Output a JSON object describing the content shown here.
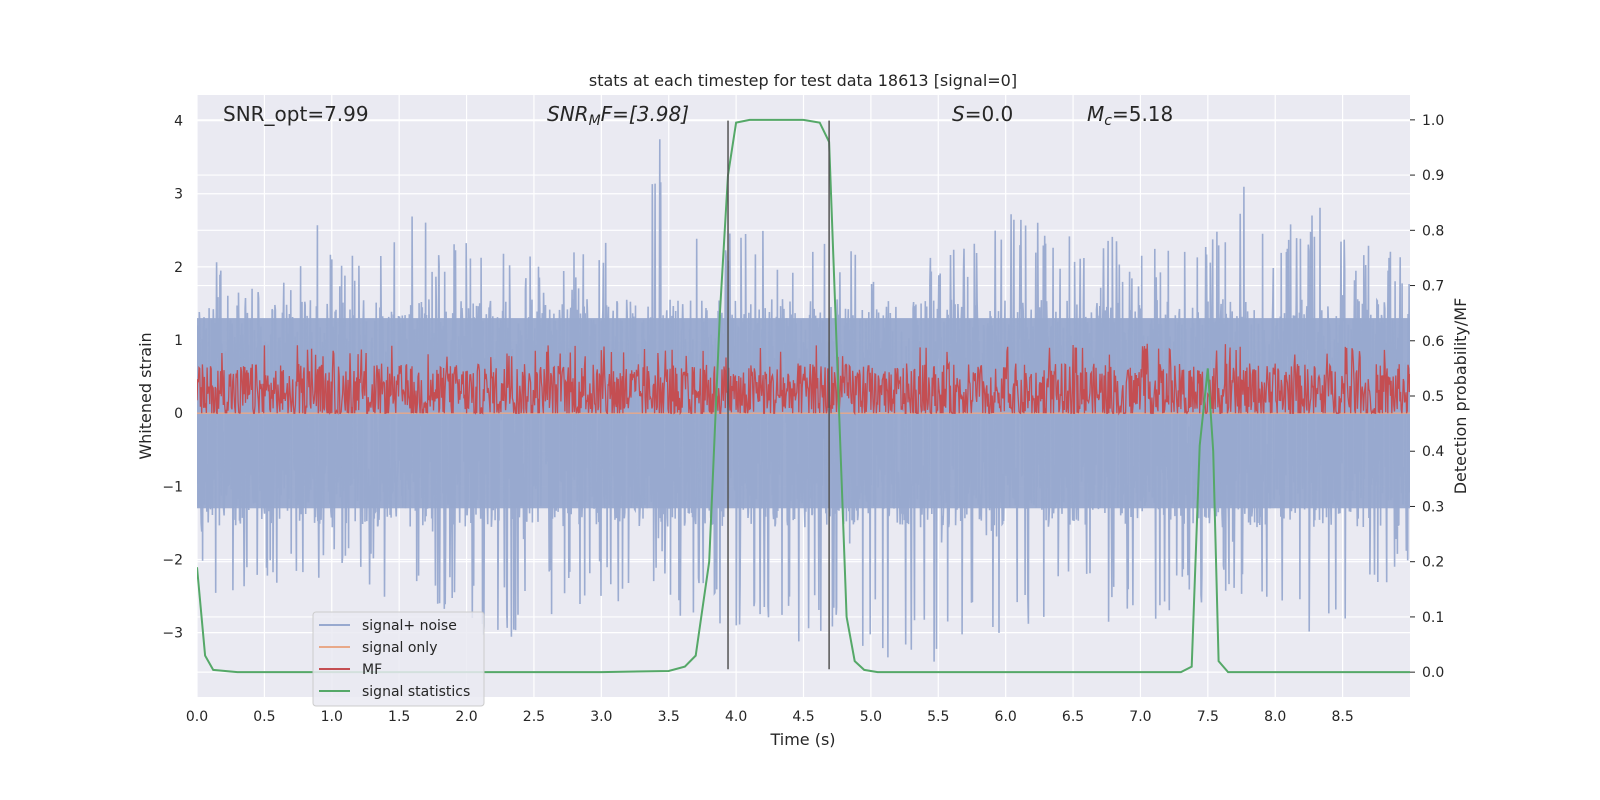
{
  "chart_data": {
    "type": "line",
    "title": "stats at each timestep for test data 18613 [signal=0]",
    "xlabel": "Time (s)",
    "ylabel_left": "Whitened strain",
    "ylabel_right": "Detection probability/MF",
    "xlim": [
      0.0,
      9.0
    ],
    "ylim_left": [
      -3.88,
      4.35
    ],
    "ylim_right": [
      -0.045,
      1.045
    ],
    "xticks": [
      0.0,
      0.5,
      1.0,
      1.5,
      2.0,
      2.5,
      3.0,
      3.5,
      4.0,
      4.5,
      5.0,
      5.5,
      6.0,
      6.5,
      7.0,
      7.5,
      8.0,
      8.5
    ],
    "xtick_labels": [
      "0.0",
      "0.5",
      "1.0",
      "1.5",
      "2.0",
      "2.5",
      "3.0",
      "3.5",
      "4.0",
      "4.5",
      "5.0",
      "5.5",
      "6.0",
      "6.5",
      "7.0",
      "7.5",
      "8.0",
      "8.5"
    ],
    "yticks_left": [
      4,
      3,
      2,
      1,
      0,
      -1,
      -2,
      -3
    ],
    "ytick_labels_left": [
      "4",
      "3",
      "2",
      "1",
      "0",
      "−1",
      "−2",
      "−3"
    ],
    "yticks_right": [
      1.0,
      0.9,
      0.8,
      0.7,
      0.6,
      0.5,
      0.4,
      0.3,
      0.2,
      0.1,
      0.0
    ],
    "ytick_labels_right": [
      "1.0",
      "0.9",
      "0.8",
      "0.7",
      "0.6",
      "0.5",
      "0.4",
      "0.3",
      "0.2",
      "0.1",
      "0.0"
    ],
    "grid": true,
    "legend_position": "lower-left",
    "annotations": {
      "snr_opt": "SNR_opt=7.99",
      "snr_mf_base": "SNR",
      "snr_mf_sub": "M",
      "snr_mf_rest": "F=[3.98]",
      "s_base": "S",
      "s_rest": "=0.0",
      "mc_base": "M",
      "mc_sub": "c",
      "mc_rest": "=5.18"
    },
    "vertical_lines": [
      3.94,
      4.69
    ],
    "vertical_line_range": [
      -3.5,
      4.0
    ],
    "series": [
      {
        "name": "signal+ noise",
        "axis": "left",
        "color": "#98a9cf",
        "style": "dense-noise",
        "upper_envelope": [
          [
            0.0,
            2.1
          ],
          [
            0.3,
            2.1
          ],
          [
            0.5,
            1.9
          ],
          [
            0.8,
            2.4
          ],
          [
            0.9,
            2.8
          ],
          [
            1.1,
            2.1
          ],
          [
            1.6,
            3.0
          ],
          [
            1.8,
            2.3
          ],
          [
            2.2,
            2.6
          ],
          [
            2.5,
            2.1
          ],
          [
            3.0,
            2.3
          ],
          [
            3.42,
            4.0
          ],
          [
            3.6,
            2.5
          ],
          [
            4.0,
            2.6
          ],
          [
            4.5,
            2.5
          ],
          [
            5.0,
            2.2
          ],
          [
            5.5,
            2.3
          ],
          [
            5.9,
            2.8
          ],
          [
            6.5,
            2.6
          ],
          [
            7.0,
            2.3
          ],
          [
            7.5,
            2.3
          ],
          [
            7.75,
            3.4
          ],
          [
            8.0,
            2.4
          ],
          [
            8.3,
            2.9
          ],
          [
            8.6,
            2.4
          ],
          [
            9.0,
            2.1
          ]
        ],
        "lower_envelope": [
          [
            0.0,
            -1.6
          ],
          [
            0.1,
            -2.8
          ],
          [
            0.5,
            -2.4
          ],
          [
            1.0,
            -2.4
          ],
          [
            1.6,
            -2.7
          ],
          [
            1.9,
            -2.9
          ],
          [
            2.25,
            -3.2
          ],
          [
            2.5,
            -2.8
          ],
          [
            3.0,
            -2.6
          ],
          [
            3.5,
            -2.8
          ],
          [
            4.0,
            -3.0
          ],
          [
            4.25,
            -3.5
          ],
          [
            4.6,
            -3.1
          ],
          [
            5.0,
            -3.3
          ],
          [
            5.42,
            -3.5
          ],
          [
            5.6,
            -3.2
          ],
          [
            6.0,
            -3.0
          ],
          [
            6.5,
            -2.7
          ],
          [
            7.0,
            -3.1
          ],
          [
            7.3,
            -2.8
          ],
          [
            7.7,
            -2.4
          ],
          [
            8.0,
            -2.9
          ],
          [
            8.48,
            -3.1
          ],
          [
            9.0,
            -2.0
          ]
        ],
        "core_band": [
          -1.3,
          1.3
        ]
      },
      {
        "name": "signal only",
        "axis": "left",
        "color": "#e8a888",
        "style": "line",
        "points": [
          [
            0.0,
            0.0
          ],
          [
            9.0,
            0.0
          ]
        ]
      },
      {
        "name": "MF",
        "axis": "left",
        "color": "#c44e52",
        "style": "dense-noise",
        "band": [
          0.0,
          0.95
        ],
        "center": 0.28
      },
      {
        "name": "signal statistics",
        "axis": "right",
        "color": "#55a868",
        "style": "line",
        "points": [
          [
            0.0,
            0.19
          ],
          [
            0.06,
            0.03
          ],
          [
            0.12,
            0.004
          ],
          [
            0.3,
            0.0
          ],
          [
            3.0,
            0.0
          ],
          [
            3.5,
            0.002
          ],
          [
            3.62,
            0.01
          ],
          [
            3.7,
            0.03
          ],
          [
            3.8,
            0.2
          ],
          [
            3.88,
            0.65
          ],
          [
            3.94,
            0.9
          ],
          [
            4.0,
            0.995
          ],
          [
            4.1,
            1.0
          ],
          [
            4.5,
            1.0
          ],
          [
            4.62,
            0.995
          ],
          [
            4.69,
            0.96
          ],
          [
            4.76,
            0.5
          ],
          [
            4.82,
            0.1
          ],
          [
            4.88,
            0.02
          ],
          [
            4.95,
            0.004
          ],
          [
            5.05,
            0.0
          ],
          [
            7.3,
            0.0
          ],
          [
            7.38,
            0.01
          ],
          [
            7.44,
            0.41
          ],
          [
            7.5,
            0.55
          ],
          [
            7.54,
            0.4
          ],
          [
            7.58,
            0.02
          ],
          [
            7.65,
            0.0
          ],
          [
            9.0,
            0.0
          ]
        ]
      }
    ]
  }
}
